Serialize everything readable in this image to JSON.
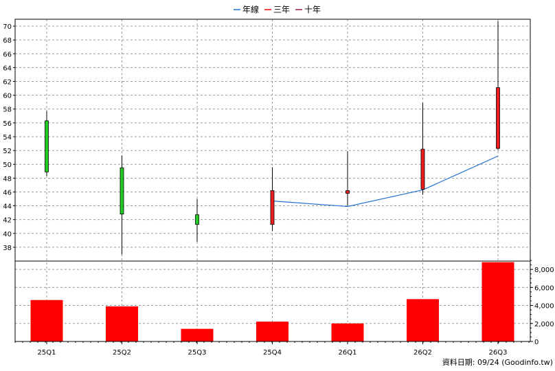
{
  "legend": [
    {
      "label": "年線",
      "color": "#1f6fd1"
    },
    {
      "label": "三年",
      "color": "#ff0000"
    },
    {
      "label": "十年",
      "color": "#9b1b3d"
    }
  ],
  "footer": "資料日期: 09/24  (Goodinfo.tw)",
  "colors": {
    "up": "#ee1c1c",
    "down": "#22cc22",
    "volume": "#ff0000",
    "ma": "#1f6fd1",
    "grid": "#999999"
  },
  "chart_data": [
    {
      "type": "candlestick",
      "categories": [
        "25Q1",
        "25Q2",
        "25Q3",
        "25Q4",
        "26Q1",
        "26Q2",
        "26Q3"
      ],
      "candles": [
        {
          "open": 56.3,
          "close": 48.9,
          "high": 57.7,
          "low": 48.3
        },
        {
          "open": 49.5,
          "close": 42.8,
          "high": 51.3,
          "low": 37.0
        },
        {
          "open": 42.7,
          "close": 41.3,
          "high": 45.0,
          "low": 38.8
        },
        {
          "open": 41.3,
          "close": 46.2,
          "high": 49.6,
          "low": 40.4
        },
        {
          "open": 45.8,
          "close": 46.2,
          "high": 51.9,
          "low": 44.0
        },
        {
          "open": 46.4,
          "close": 52.2,
          "high": 58.9,
          "low": 45.6
        },
        {
          "open": 52.3,
          "close": 61.1,
          "high": 70.7,
          "low": 52.1
        }
      ],
      "series": [
        {
          "name": "年線",
          "values": [
            null,
            null,
            null,
            44.7,
            43.9,
            46.3,
            51.2
          ]
        }
      ],
      "ylim": [
        36,
        71
      ],
      "yticks": [
        38,
        40,
        42,
        44,
        46,
        48,
        50,
        52,
        54,
        56,
        58,
        60,
        62,
        64,
        66,
        68,
        70
      ],
      "grid": true,
      "legend_position": "top-center"
    },
    {
      "type": "bar",
      "categories": [
        "25Q1",
        "25Q2",
        "25Q3",
        "25Q4",
        "26Q1",
        "26Q2",
        "26Q3"
      ],
      "values": [
        4600,
        3900,
        1400,
        2200,
        2000,
        4700,
        8800
      ],
      "ylim": [
        0,
        9000
      ],
      "yticks": [
        0,
        2000,
        4000,
        6000,
        8000
      ],
      "ytick_labels": [
        "0",
        "2,000",
        "4,000",
        "6,000",
        "8,000"
      ],
      "grid": true
    }
  ]
}
